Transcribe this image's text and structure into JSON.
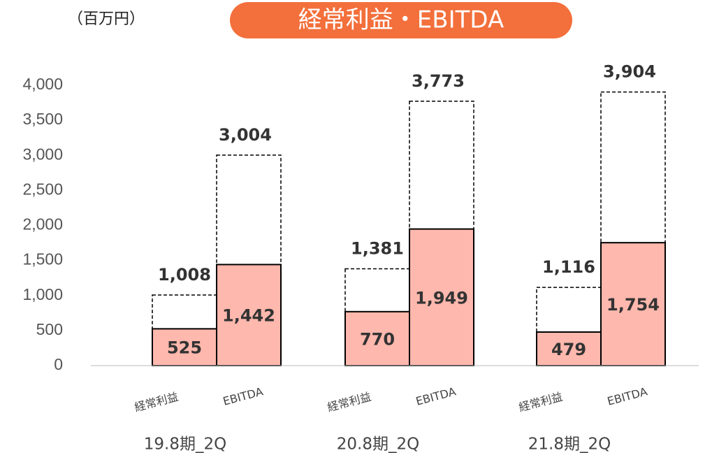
{
  "chart_data": {
    "type": "bar",
    "title": "経常利益・EBITDA",
    "unit_label": "（百万円）",
    "categories": [
      "19.8期_2Q",
      "20.8期_2Q",
      "21.8期_2Q"
    ],
    "bar_labels": [
      "経常利益",
      "EBITDA"
    ],
    "actual": [
      [
        525,
        1442
      ],
      [
        770,
        1949
      ],
      [
        479,
        1754
      ]
    ],
    "actual_labels": [
      [
        "525",
        "1,442"
      ],
      [
        "770",
        "1,949"
      ],
      [
        "479",
        "1,754"
      ]
    ],
    "total": [
      [
        1008,
        3004
      ],
      [
        1381,
        3773
      ],
      [
        1116,
        3904
      ]
    ],
    "total_labels": [
      [
        "1,008",
        "3,004"
      ],
      [
        "1,381",
        "3,773"
      ],
      [
        "1,116",
        "3,904"
      ]
    ],
    "color": "#ffb8ad",
    "title_color": "#f36f3b",
    "ylim": [
      0,
      4000
    ],
    "yticks": [
      0,
      500,
      {
        "value": 1000,
        "label": "1,000"
      },
      {
        "value": 1500,
        "label": "1,500"
      },
      {
        "value": 2000,
        "label": "2,000"
      },
      {
        "value": 2500,
        "label": "2,500"
      },
      {
        "value": 3000,
        "label": "3,000"
      },
      {
        "value": 3500,
        "label": "3,500"
      },
      {
        "value": 4000,
        "label": "4,000"
      }
    ]
  }
}
